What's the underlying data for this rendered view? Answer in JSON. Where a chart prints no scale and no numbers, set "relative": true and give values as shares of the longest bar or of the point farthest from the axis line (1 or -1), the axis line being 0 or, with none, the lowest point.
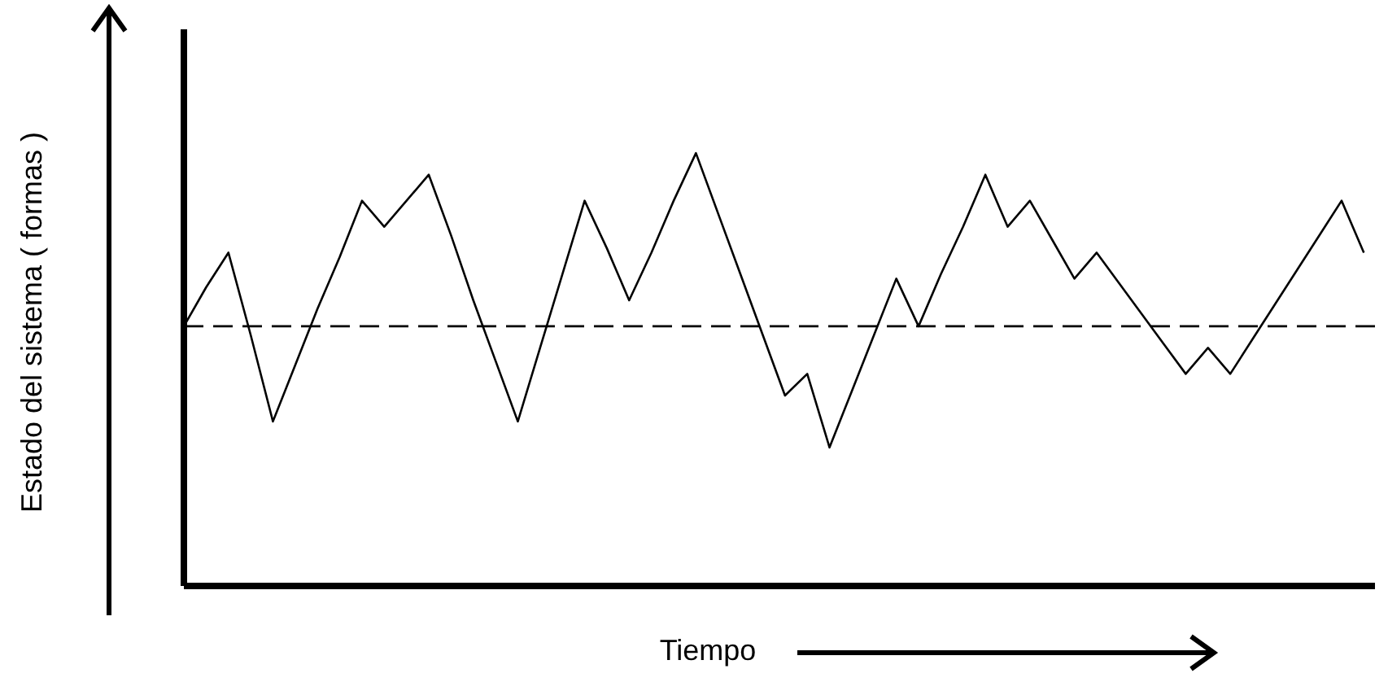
{
  "chart_data": {
    "type": "line",
    "xlabel": "Tiempo",
    "ylabel": "Estado del sistema ( formas )",
    "relative": true,
    "marker": "none",
    "grid": false,
    "legend": false,
    "categories": [
      null,
      null,
      null,
      null,
      null,
      null,
      null,
      null,
      null,
      null,
      null,
      null,
      null,
      null,
      null,
      null,
      null,
      null,
      null,
      null,
      null,
      null,
      null,
      null,
      null,
      null,
      null,
      null,
      null,
      null,
      null,
      null,
      null,
      null,
      null,
      null,
      null,
      null,
      null,
      null,
      null,
      null,
      null,
      null,
      null,
      null,
      null,
      null,
      null,
      null,
      null,
      null,
      null,
      null
    ],
    "series": [
      {
        "color": "#000000",
        "values": [
          0.6,
          0.69,
          0.77,
          0.58,
          0.38,
          0.51,
          0.64,
          0.76,
          0.89,
          0.83,
          0.89,
          0.95,
          0.81,
          0.66,
          0.52,
          0.38,
          0.55,
          0.72,
          0.89,
          0.78,
          0.66,
          0.77,
          0.89,
          1,
          0.86,
          0.72,
          0.58,
          0.44,
          0.49,
          0.32,
          0.45,
          0.58,
          0.71,
          0.6,
          0.72,
          0.83,
          0.95,
          0.83,
          0.89,
          0.8,
          0.71,
          0.77,
          0.7,
          0.63,
          0.56,
          0.49,
          0.55,
          0.49,
          0.57,
          0.65,
          0.73,
          0.81,
          0.89,
          0.77
        ]
      }
    ],
    "ref_lines": [
      {
        "axis": "y",
        "value": 0.6,
        "color": "#000000",
        "line_style": "dashed"
      }
    ]
  }
}
